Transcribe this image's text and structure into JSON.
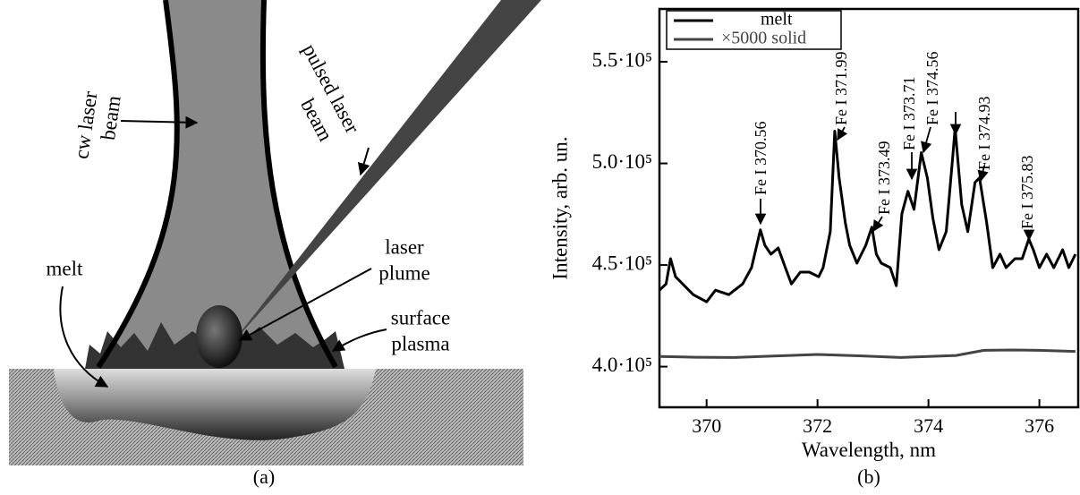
{
  "diagram": {
    "caption": "(a)",
    "labels": {
      "cw_beam": [
        "cw laser",
        "beam"
      ],
      "pulsed_beam": [
        "pulsed laser",
        "beam"
      ],
      "plume": [
        "laser",
        "plume"
      ],
      "melt": [
        "melt"
      ],
      "plasma": [
        "surface",
        "plasma"
      ]
    }
  },
  "chart_data": {
    "type": "line",
    "caption": "(b)",
    "xlabel": "Wavelength, nm",
    "ylabel": "Intensity, arb. un.",
    "xlim": [
      369.15,
      376.7
    ],
    "ylim": [
      380000,
      576000
    ],
    "xticks": [
      370,
      372,
      374,
      376
    ],
    "yticks": [
      {
        "value": 400000,
        "label": "4.0·10⁵"
      },
      {
        "value": 450000,
        "label": "4.5·10⁵"
      },
      {
        "value": 500000,
        "label": "5.0·10⁵"
      },
      {
        "value": 550000,
        "label": "5.5·10⁵"
      }
    ],
    "annotations": [
      "Fe I 370.56",
      "Fe I 371.99",
      "Fe I 373.49",
      "Fe I 373.71",
      "Fe I 374.56",
      "Fe I 374.93",
      "Fe I 375.83"
    ],
    "series": [
      {
        "name": "melt",
        "color": "#000000",
        "x": [
          369.15,
          369.27,
          369.35,
          369.44,
          369.6,
          369.76,
          370.0,
          370.16,
          370.4,
          370.65,
          370.81,
          370.97,
          371.05,
          371.16,
          371.29,
          371.42,
          371.53,
          371.69,
          371.85,
          372.02,
          372.1,
          372.23,
          372.31,
          372.39,
          372.5,
          372.58,
          372.71,
          372.87,
          372.98,
          373.06,
          373.15,
          373.31,
          373.42,
          373.52,
          373.63,
          373.74,
          373.87,
          373.98,
          374.08,
          374.19,
          374.32,
          374.44,
          374.48,
          374.6,
          374.71,
          374.84,
          374.92,
          375.05,
          375.16,
          375.29,
          375.4,
          375.56,
          375.69,
          375.81,
          375.89,
          376.0,
          376.13,
          376.26,
          376.42,
          376.53,
          376.65
        ],
        "values": [
          437600,
          440700,
          453100,
          444200,
          439800,
          435400,
          431900,
          437600,
          435400,
          440700,
          448700,
          467300,
          459700,
          455300,
          458400,
          448700,
          440700,
          446500,
          446500,
          444200,
          448700,
          466400,
          515900,
          492900,
          470800,
          459700,
          450900,
          459700,
          468600,
          455300,
          450900,
          448700,
          439800,
          475200,
          486300,
          477400,
          505300,
          492900,
          473000,
          457500,
          466400,
          504000,
          517300,
          479700,
          466400,
          490700,
          492900,
          470800,
          448700,
          455300,
          448700,
          453100,
          453100,
          462800,
          457500,
          448700,
          455300,
          448700,
          457500,
          448700,
          455300
        ]
      },
      {
        "name": "×5000 solid",
        "color": "#444444",
        "x": [
          369.15,
          369.8,
          370.5,
          371.2,
          372.0,
          372.8,
          373.5,
          374.0,
          374.5,
          375.0,
          375.5,
          376.0,
          376.65
        ],
        "values": [
          405000,
          404600,
          404500,
          405200,
          406000,
          405300,
          404500,
          405000,
          405500,
          408000,
          408200,
          408000,
          407500
        ]
      }
    ]
  }
}
